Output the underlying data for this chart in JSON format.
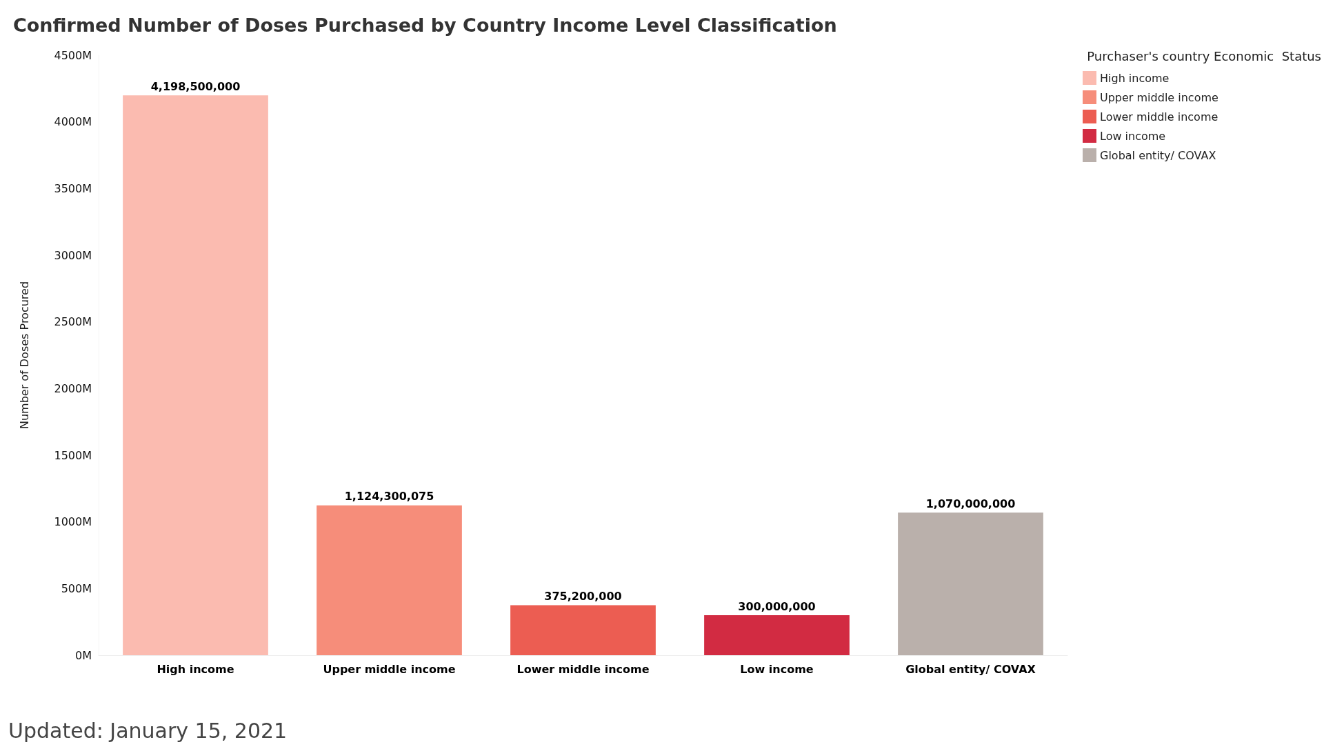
{
  "chart_data": {
    "type": "bar",
    "title": "Confirmed Number of Doses Purchased by Country Income Level Classification",
    "ylabel": "Number of Doses Procured",
    "legend_title": "Purchaser's country Economic  Status",
    "annotations": [
      "Updated: January 15, 2021"
    ],
    "categories": [
      "High income",
      "Upper middle income",
      "Lower middle income",
      "Low income",
      "Global entity/ COVAX"
    ],
    "series": [
      {
        "name": "High income",
        "color": "#fbbbb0",
        "values": [
          4198500000,
          null,
          null,
          null,
          null
        ],
        "value_labels": [
          "4,198,500,000",
          null,
          null,
          null,
          null
        ]
      },
      {
        "name": "Upper middle income",
        "color": "#f68d7a",
        "values": [
          null,
          1124300075,
          null,
          null,
          null
        ],
        "value_labels": [
          null,
          "1,124,300,075",
          null,
          null,
          null
        ]
      },
      {
        "name": "Lower middle income",
        "color": "#ec5d52",
        "values": [
          null,
          null,
          375200000,
          null,
          null
        ],
        "value_labels": [
          null,
          null,
          "375,200,000",
          null,
          null
        ]
      },
      {
        "name": "Low income",
        "color": "#d22b42",
        "values": [
          null,
          null,
          null,
          300000000,
          null
        ],
        "value_labels": [
          null,
          null,
          null,
          "300,000,000",
          null
        ]
      },
      {
        "name": "Global entity/ COVAX",
        "color": "#bab0ab",
        "values": [
          null,
          null,
          null,
          null,
          1070000000
        ],
        "value_labels": [
          null,
          null,
          null,
          null,
          "1,070,000,000"
        ]
      }
    ],
    "ylim": [
      0,
      4500000000
    ],
    "yticks": [
      {
        "value": 0,
        "label": "0M"
      },
      {
        "value": 500000000,
        "label": "500M"
      },
      {
        "value": 1000000000,
        "label": "1000M"
      },
      {
        "value": 1500000000,
        "label": "1500M"
      },
      {
        "value": 2000000000,
        "label": "2000M"
      },
      {
        "value": 2500000000,
        "label": "2500M"
      },
      {
        "value": 3000000000,
        "label": "3000M"
      },
      {
        "value": 3500000000,
        "label": "3500M"
      },
      {
        "value": 4000000000,
        "label": "4000M"
      },
      {
        "value": 4500000000,
        "label": "4500M"
      }
    ],
    "legend": "top right",
    "grid": false,
    "stacked": true
  }
}
